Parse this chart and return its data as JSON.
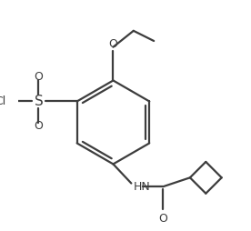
{
  "bg_color": "#ffffff",
  "bond_color": "#3d3d3d",
  "line_width": 1.6,
  "fig_width": 2.76,
  "fig_height": 2.54,
  "dpi": 100,
  "xlim": [
    0.0,
    1.0
  ],
  "ylim": [
    0.0,
    1.0
  ]
}
